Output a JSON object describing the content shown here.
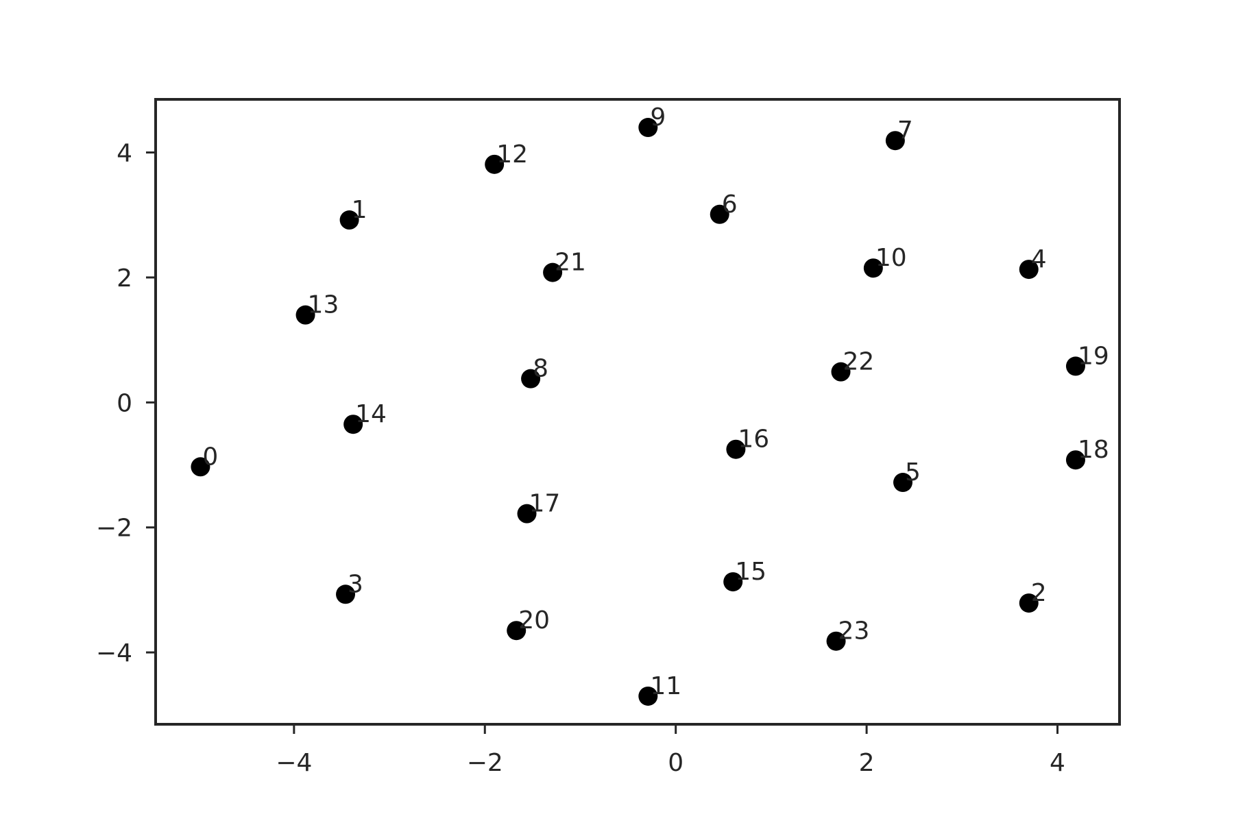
{
  "chart_data": {
    "type": "scatter",
    "title": "",
    "xlabel": "",
    "ylabel": "",
    "xlim": [
      -5.45,
      4.65
    ],
    "ylim": [
      -5.15,
      4.85
    ],
    "xticks": [
      -4,
      -2,
      0,
      2,
      4
    ],
    "yticks": [
      -4,
      -2,
      0,
      2,
      4
    ],
    "tick_labels_x": [
      "−4",
      "−2",
      "0",
      "2",
      "4"
    ],
    "tick_labels_y": [
      "−4",
      "−2",
      "0",
      "2",
      "4"
    ],
    "grid": false,
    "marker_color": "#000000",
    "axis_color": "#262626",
    "points": [
      {
        "label": "0",
        "x": -4.98,
        "y": -1.03
      },
      {
        "label": "1",
        "x": -3.42,
        "y": 2.92
      },
      {
        "label": "2",
        "x": 3.7,
        "y": -3.21
      },
      {
        "label": "3",
        "x": -3.46,
        "y": -3.07
      },
      {
        "label": "4",
        "x": 3.7,
        "y": 2.13
      },
      {
        "label": "5",
        "x": 2.38,
        "y": -1.28
      },
      {
        "label": "6",
        "x": 0.46,
        "y": 3.01
      },
      {
        "label": "7",
        "x": 2.3,
        "y": 4.19
      },
      {
        "label": "8",
        "x": -1.52,
        "y": 0.38
      },
      {
        "label": "9",
        "x": -0.29,
        "y": 4.4
      },
      {
        "label": "10",
        "x": 2.07,
        "y": 2.15
      },
      {
        "label": "11",
        "x": -0.29,
        "y": -4.7
      },
      {
        "label": "12",
        "x": -1.9,
        "y": 3.81
      },
      {
        "label": "13",
        "x": -3.88,
        "y": 1.4
      },
      {
        "label": "14",
        "x": -3.38,
        "y": -0.35
      },
      {
        "label": "15",
        "x": 0.6,
        "y": -2.87
      },
      {
        "label": "16",
        "x": 0.63,
        "y": -0.75
      },
      {
        "label": "17",
        "x": -1.56,
        "y": -1.78
      },
      {
        "label": "18",
        "x": 4.19,
        "y": -0.92
      },
      {
        "label": "19",
        "x": 4.19,
        "y": 0.58
      },
      {
        "label": "20",
        "x": -1.67,
        "y": -3.65
      },
      {
        "label": "21",
        "x": -1.29,
        "y": 2.08
      },
      {
        "label": "22",
        "x": 1.73,
        "y": 0.49
      },
      {
        "label": "23",
        "x": 1.68,
        "y": -3.82
      }
    ]
  }
}
